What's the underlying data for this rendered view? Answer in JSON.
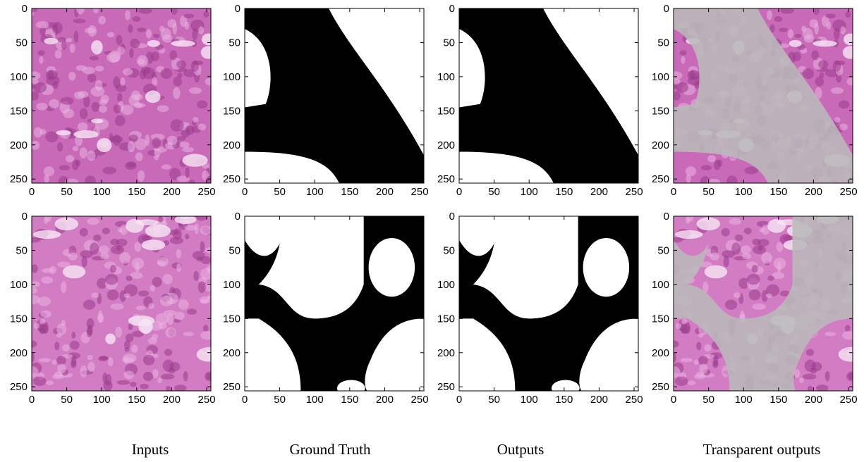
{
  "axes": {
    "xlim": [
      0,
      256
    ],
    "ylim": [
      256,
      0
    ],
    "xticks": [
      0,
      50,
      100,
      150,
      200,
      250
    ],
    "yticks": [
      0,
      50,
      100,
      150,
      200,
      250
    ]
  },
  "columns": [
    "Inputs",
    "Ground Truth",
    "Outputs",
    "Transparent outputs"
  ]
}
